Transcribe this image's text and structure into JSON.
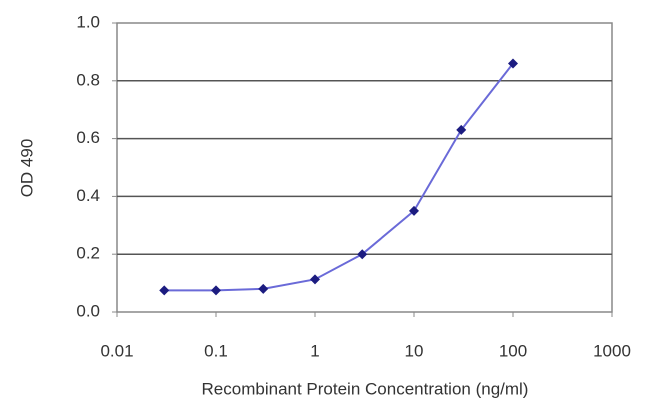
{
  "chart_data": {
    "type": "line",
    "x_label": "Recombinant Protein Concentration (ng/ml)",
    "y_label": "OD 490",
    "x": [
      0.03,
      0.1,
      0.3,
      1,
      3,
      10,
      30,
      100
    ],
    "values": [
      0.075,
      0.075,
      0.08,
      0.113,
      0.2,
      0.35,
      0.63,
      0.86
    ],
    "color": "#6a6ad8",
    "marker_color": "#1c1c80",
    "xlog": true,
    "xlim": [
      0.01,
      1000
    ],
    "xticks": [
      0.01,
      0.1,
      1,
      10,
      100,
      1000
    ],
    "ylim": [
      0,
      1
    ],
    "yticks": [
      {
        "value": 0,
        "label": "0.0"
      },
      {
        "value": 0.2,
        "label": "0.2"
      },
      {
        "value": 0.4,
        "label": "0.4"
      },
      {
        "value": 0.6,
        "label": "0.6"
      },
      {
        "value": 0.8,
        "label": "0.8"
      },
      {
        "value": 1,
        "label": "1.0"
      }
    ],
    "grid": true
  }
}
